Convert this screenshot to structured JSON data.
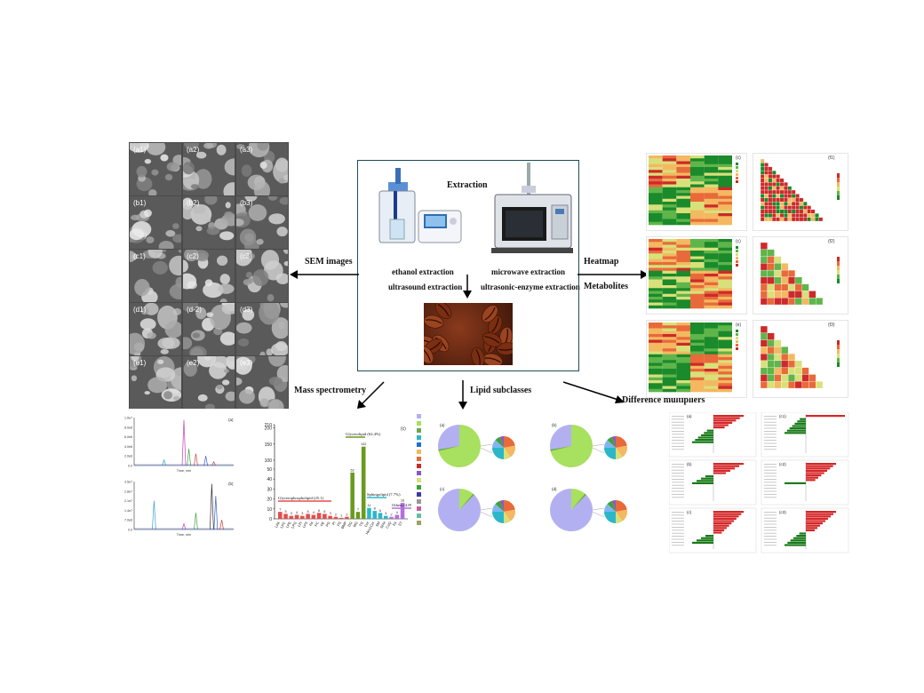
{
  "center_box": {
    "title": "Extraction",
    "methods_left": [
      "ethanol extraction",
      "ultrasound extraction"
    ],
    "methods_right": [
      "microwave extraction",
      "ultrasonic-enzyme extraction"
    ],
    "device_left": "ultrasonic-processor-icon",
    "device_right": "microwave-reactor-icon",
    "product": "roasted-coffee-beans-image"
  },
  "branches": {
    "sem": "SEM images",
    "heatmap": "Heatmap",
    "metabolites": "Metabolites",
    "mass_spec": "Mass spectrometry",
    "lipid": "Lipid subclasses",
    "difference": "Difference multipliers"
  },
  "sem_labels": [
    "(a1)",
    "(a2)",
    "(a3)",
    "(b1)",
    "(b2)",
    "(b3)",
    "(c1)",
    "(c2)",
    "(c3)",
    "(d1)",
    "(d-2)",
    "(d3)",
    "(e1)",
    "(e2)",
    "(e3)"
  ],
  "heatmap_labels": [
    "(c)",
    "(f1)",
    "(c)",
    "(f2)",
    "(e)",
    "(f3)"
  ],
  "lipid_labels": [
    "(a)",
    "(b)",
    "(c)",
    "(d)"
  ],
  "diff_labels": [
    "(a)",
    "(c1)",
    "(b)",
    "(c2)",
    "(c)",
    "(c3)"
  ],
  "mass_spec": {
    "panel_labels": [
      "(a)",
      "(b)"
    ],
    "y_ticks_a": [
      "1.0e7",
      "8.0e6",
      "6.0e6",
      "4.0e6",
      "2.0e6",
      "0.0"
    ],
    "y_ticks_b": [
      "3.5e7",
      "2.8e7",
      "2.1e7",
      "1.4e7",
      "7.0e6",
      "0.0"
    ],
    "x_label": "Time, min"
  },
  "bar_chart": {
    "panel_label": "(c)",
    "y_ticks": [
      "210",
      "200",
      "150",
      "100",
      "50",
      "40",
      "30",
      "20",
      "10",
      "0"
    ],
    "group_labels": [
      "Glycerophospholipid (25.1)",
      "Glycerolipid (62.4%)",
      "Sphingolipid (7.7%)",
      "Others (4.8%)"
    ]
  },
  "chart_data": {
    "type": "bar",
    "categories": [
      "LPA",
      "LPC",
      "LPE",
      "LPG",
      "LPI",
      "LPS",
      "PA",
      "PC",
      "PE",
      "PG",
      "PI",
      "PS",
      "BMP",
      "DG",
      "MG",
      "TG",
      "Cer",
      "Hex1Cer",
      "SM",
      "SPH",
      "CoQ",
      "FA",
      "ST"
    ],
    "values": [
      7,
      5,
      3,
      4,
      3,
      5,
      4,
      6,
      5,
      3,
      2,
      1,
      2,
      62,
      7,
      142,
      11,
      8,
      6,
      3,
      2,
      4,
      16
    ],
    "series_colors": [
      "#e74c4c",
      "#e74c4c",
      "#e74c4c",
      "#e74c4c",
      "#e74c4c",
      "#e74c4c",
      "#e74c4c",
      "#e74c4c",
      "#e74c4c",
      "#e74c4c",
      "#e74c4c",
      "#e74c4c",
      "#e74c4c",
      "#6a9a1e",
      "#6a9a1e",
      "#6a9a1e",
      "#2bb7c9",
      "#2bb7c9",
      "#2bb7c9",
      "#2bb7c9",
      "#b56ee0",
      "#b56ee0",
      "#b56ee0"
    ],
    "ylim": [
      0,
      210
    ],
    "broken_axis": true
  },
  "colors": {
    "accent_red": "#d62728",
    "accent_green": "#1a7a1a",
    "pie_green": "#a8e05f",
    "pie_lilac": "#b3b0f2"
  }
}
